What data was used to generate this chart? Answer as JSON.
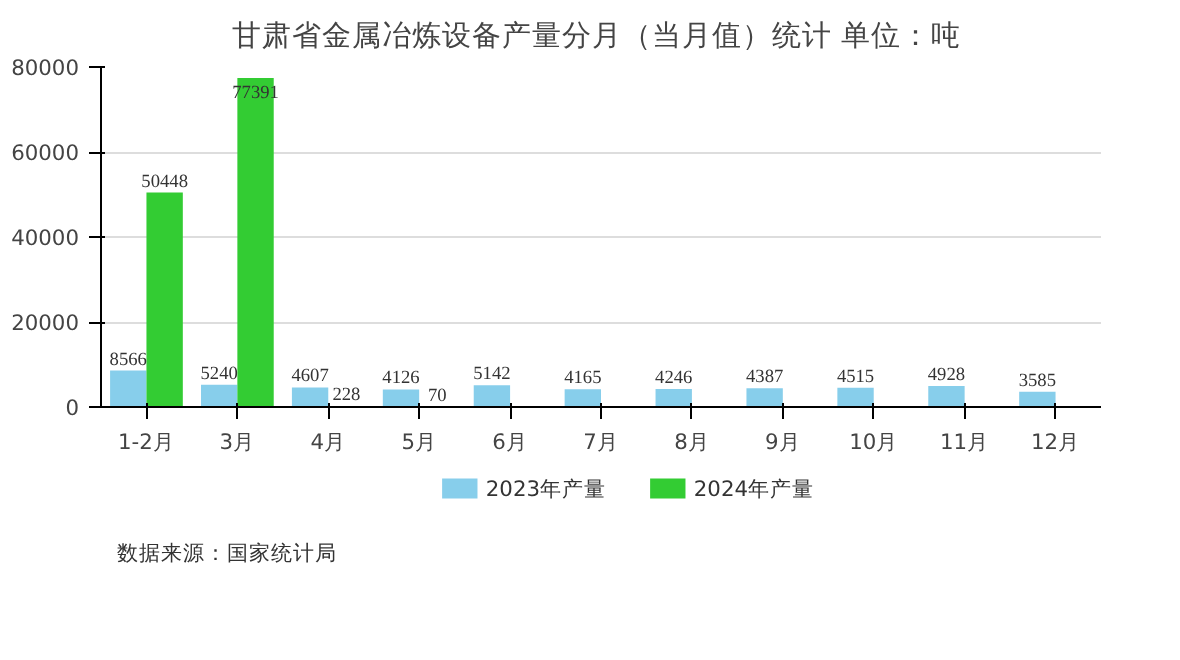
{
  "chart_data": {
    "type": "bar",
    "title": "甘肃省金属冶炼设备产量分月（当月值）统计  单位：吨",
    "categories": [
      "1-2月",
      "3月",
      "4月",
      "5月",
      "6月",
      "7月",
      "8月",
      "9月",
      "10月",
      "11月",
      "12月"
    ],
    "series": [
      {
        "name": "2023年产量",
        "color": "#87ceeb",
        "values": [
          8566,
          5240,
          4607,
          4126,
          5142,
          4165,
          4246,
          4387,
          4515,
          4928,
          3585
        ]
      },
      {
        "name": "2024年产量",
        "color": "#33cc33",
        "values": [
          50448,
          77391,
          228,
          70,
          null,
          null,
          null,
          null,
          null,
          null,
          null
        ]
      }
    ],
    "ylim": [
      0,
      80000
    ],
    "yticks": [
      0,
      20000,
      40000,
      60000,
      80000
    ],
    "grid": "y",
    "legend": "bottom",
    "data_labels": true,
    "annotations": [
      "数据来源：国家统计局"
    ]
  }
}
